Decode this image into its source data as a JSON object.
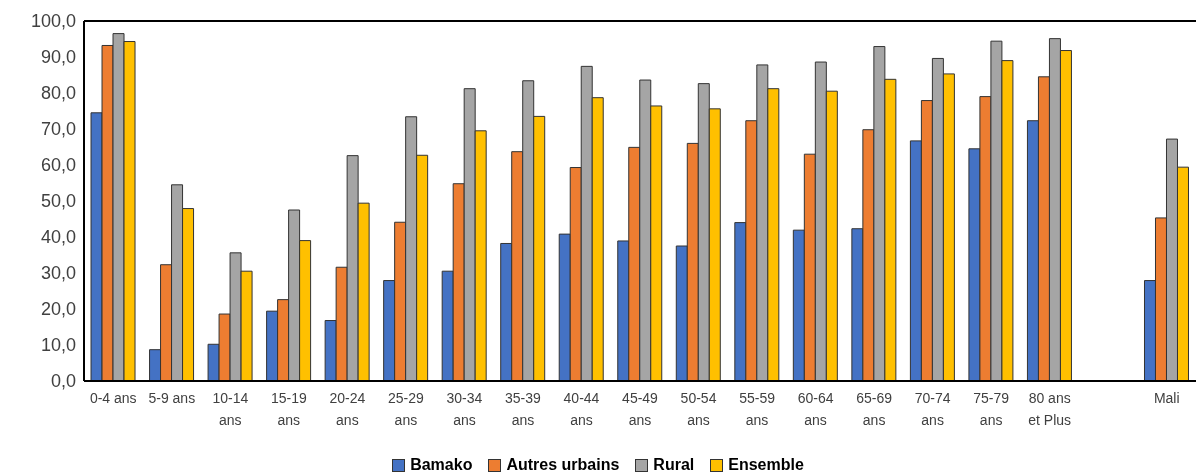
{
  "chart_data": {
    "type": "bar",
    "categories": [
      "0-4 ans",
      "5-9 ans",
      "10-14 ans",
      "15-19 ans",
      "20-24 ans",
      "25-29 ans",
      "30-34 ans",
      "35-39 ans",
      "40-44 ans",
      "45-49 ans",
      "50-54 ans",
      "55-59 ans",
      "60-64 ans",
      "65-69 ans",
      "70-74 ans",
      "75-79 ans",
      "80 ans et Plus",
      null,
      "Mali"
    ],
    "series": [
      {
        "name": "Bamako",
        "color": "#4472c4",
        "values": [
          74.5,
          8.7,
          10.2,
          19.4,
          16.8,
          27.9,
          30.5,
          38.2,
          40.8,
          38.9,
          37.5,
          44.0,
          41.9,
          42.3,
          66.7,
          64.5,
          72.3,
          null,
          27.9
        ]
      },
      {
        "name": "Autres urbains",
        "color": "#ed7d31",
        "values": [
          93.2,
          32.3,
          18.6,
          22.6,
          31.6,
          44.1,
          54.8,
          63.7,
          59.3,
          64.9,
          66.0,
          72.3,
          63.0,
          69.8,
          77.9,
          79.0,
          84.5,
          null,
          45.3
        ]
      },
      {
        "name": "Rural",
        "color": "#a5a5a5",
        "values": [
          96.5,
          54.5,
          35.6,
          47.5,
          62.6,
          73.4,
          81.2,
          83.4,
          87.4,
          83.6,
          82.6,
          87.8,
          88.6,
          92.9,
          89.6,
          94.4,
          95.1,
          null,
          67.2
        ]
      },
      {
        "name": "Ensemble",
        "color": "#ffc000",
        "values": [
          94.3,
          47.9,
          30.5,
          39.0,
          49.4,
          62.7,
          69.5,
          73.5,
          78.7,
          76.4,
          75.6,
          81.2,
          80.5,
          83.8,
          85.3,
          89.0,
          91.8,
          null,
          59.4
        ]
      }
    ],
    "ylim": [
      0,
      100
    ],
    "yticks": [
      {
        "value": 0,
        "label": "0,0"
      },
      {
        "value": 10,
        "label": "10,0"
      },
      {
        "value": 20,
        "label": "20,0"
      },
      {
        "value": 30,
        "label": "30,0"
      },
      {
        "value": 40,
        "label": "40,0"
      },
      {
        "value": 50,
        "label": "50,0"
      },
      {
        "value": 60,
        "label": "60,0"
      },
      {
        "value": 70,
        "label": "70,0"
      },
      {
        "value": 80,
        "label": "80,0"
      },
      {
        "value": 90,
        "label": "90,0"
      },
      {
        "value": 100,
        "label": "100,0"
      }
    ],
    "grid": false,
    "legend": "bottom"
  }
}
